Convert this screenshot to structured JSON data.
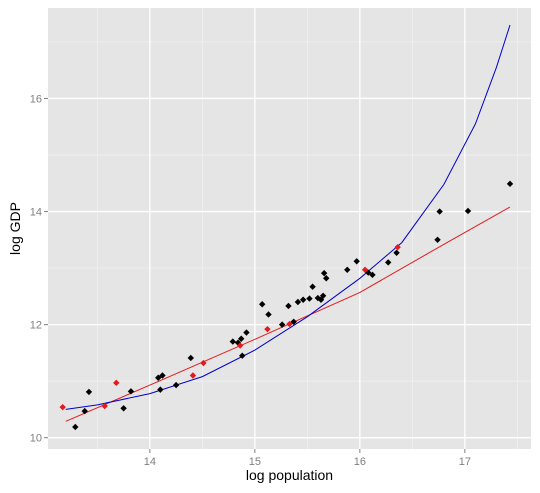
{
  "chart_data": {
    "type": "scatter",
    "title": "",
    "xlabel": "log population",
    "ylabel": "log GDP",
    "xlim": [
      13.03,
      17.63
    ],
    "ylim": [
      9.8,
      17.6
    ],
    "x_ticks": [
      14,
      15,
      16,
      17
    ],
    "x_tick_labels": [
      "14",
      "15",
      "16",
      "17"
    ],
    "y_ticks": [
      10,
      12,
      14,
      16
    ],
    "y_tick_labels": [
      "10",
      "12",
      "14",
      "16"
    ],
    "grid": true,
    "background": "#e5e5e5",
    "grid_color": "#ffffff",
    "legend": "none",
    "series": [
      {
        "color": "#000000",
        "marker": "diamond",
        "points": [
          [
            13.29,
            10.19
          ],
          [
            13.38,
            10.47
          ],
          [
            13.42,
            10.81
          ],
          [
            13.75,
            10.52
          ],
          [
            13.82,
            10.82
          ],
          [
            14.08,
            11.06
          ],
          [
            14.1,
            10.85
          ],
          [
            14.12,
            11.1
          ],
          [
            14.25,
            10.93
          ],
          [
            14.39,
            11.41
          ],
          [
            14.79,
            11.7
          ],
          [
            14.84,
            11.68
          ],
          [
            14.87,
            11.75
          ],
          [
            14.88,
            11.45
          ],
          [
            14.92,
            11.86
          ],
          [
            15.07,
            12.36
          ],
          [
            15.13,
            12.18
          ],
          [
            15.26,
            12.0
          ],
          [
            15.32,
            12.33
          ],
          [
            15.37,
            12.05
          ],
          [
            15.41,
            12.4
          ],
          [
            15.46,
            12.44
          ],
          [
            15.52,
            12.46
          ],
          [
            15.55,
            12.67
          ],
          [
            15.6,
            12.47
          ],
          [
            15.63,
            12.44
          ],
          [
            15.65,
            12.51
          ],
          [
            15.66,
            12.91
          ],
          [
            15.68,
            12.82
          ],
          [
            15.88,
            12.97
          ],
          [
            15.97,
            13.12
          ],
          [
            16.08,
            12.92
          ],
          [
            16.12,
            12.88
          ],
          [
            16.27,
            13.1
          ],
          [
            16.35,
            13.27
          ],
          [
            16.74,
            13.5
          ],
          [
            16.76,
            14.0
          ],
          [
            17.03,
            14.01
          ],
          [
            17.43,
            14.49
          ]
        ]
      },
      {
        "color": "#e41a1c",
        "marker": "diamond",
        "points": [
          [
            13.17,
            10.54
          ],
          [
            13.57,
            10.56
          ],
          [
            13.68,
            10.97
          ],
          [
            14.41,
            11.1
          ],
          [
            14.51,
            11.32
          ],
          [
            14.86,
            11.63
          ],
          [
            15.12,
            11.92
          ],
          [
            15.33,
            12.01
          ],
          [
            16.05,
            12.97
          ],
          [
            16.36,
            13.37
          ]
        ]
      }
    ],
    "lines": [
      {
        "color": "#e41a1c",
        "x": [
          13.2,
          14.0,
          15.0,
          16.0,
          16.8,
          17.43
        ],
        "y": [
          10.29,
          10.93,
          11.74,
          12.57,
          13.42,
          14.08
        ]
      },
      {
        "color": "#0000cc",
        "x": [
          13.2,
          13.5,
          14.0,
          14.5,
          15.0,
          15.5,
          16.0,
          16.4,
          16.8,
          17.1,
          17.3,
          17.43
        ],
        "y": [
          10.5,
          10.58,
          10.78,
          11.08,
          11.55,
          12.14,
          12.82,
          13.45,
          14.48,
          15.55,
          16.55,
          17.3
        ]
      }
    ]
  }
}
